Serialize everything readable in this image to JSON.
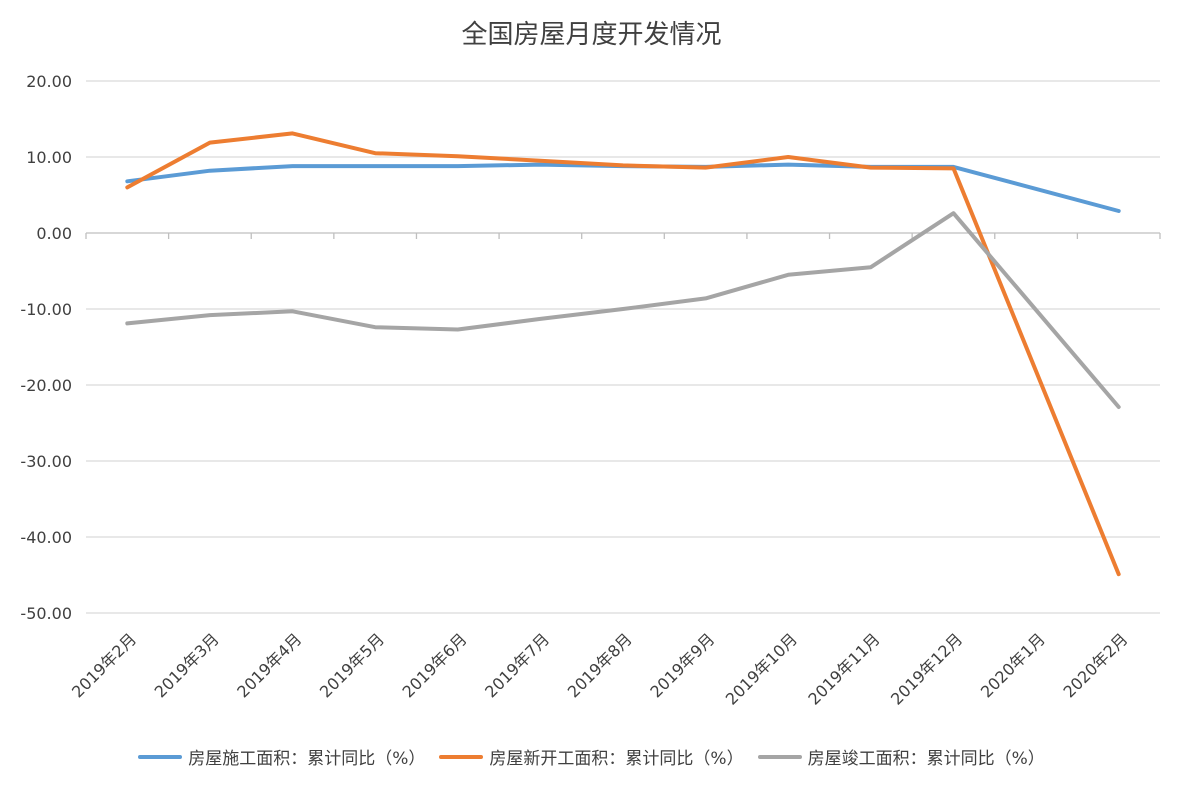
{
  "chart_data": {
    "type": "line",
    "title": "全国房屋月度开发情况",
    "categories": [
      "2019年2月",
      "2019年3月",
      "2019年4月",
      "2019年5月",
      "2019年6月",
      "2019年7月",
      "2019年8月",
      "2019年9月",
      "2019年10月",
      "2019年11月",
      "2019年12月",
      "2020年1月",
      "2020年2月"
    ],
    "ylim": [
      -50,
      20
    ],
    "yticks": [
      "20.00",
      "10.00",
      "0.00",
      "-10.00",
      "-20.00",
      "-30.00",
      "-40.00",
      "-50.00"
    ],
    "ytick_values": [
      20,
      10,
      0,
      -10,
      -20,
      -30,
      -40,
      -50
    ],
    "grid": true,
    "legend_position": "bottom",
    "series": [
      {
        "name": "房屋施工面积：累计同比（%）",
        "color": "#5B9BD5",
        "values": [
          6.8,
          8.2,
          8.8,
          8.8,
          8.8,
          9.0,
          8.8,
          8.7,
          9.0,
          8.7,
          8.7,
          null,
          2.9
        ]
      },
      {
        "name": "房屋新开工面积：累计同比（%）",
        "color": "#ED7D31",
        "values": [
          6.0,
          11.9,
          13.1,
          10.5,
          10.1,
          9.5,
          8.9,
          8.6,
          10.0,
          8.6,
          8.5,
          null,
          -44.9
        ]
      },
      {
        "name": "房屋竣工面积：累计同比（%）",
        "color": "#A5A5A5",
        "values": [
          -11.9,
          -10.8,
          -10.3,
          -12.4,
          -12.7,
          -11.3,
          -10.0,
          -8.6,
          -5.5,
          -4.5,
          2.6,
          null,
          -22.9
        ]
      }
    ]
  }
}
